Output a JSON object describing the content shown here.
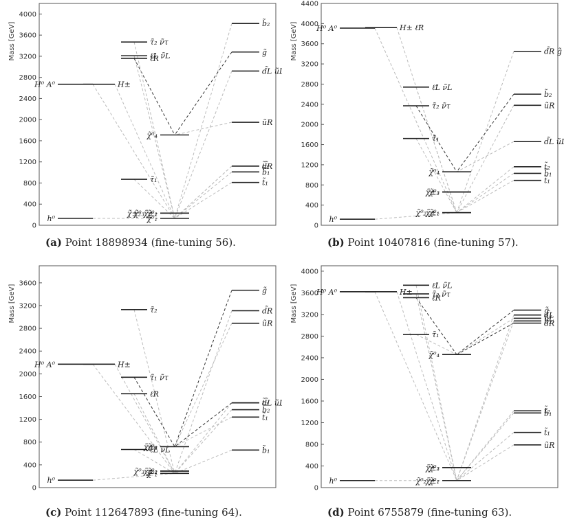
{
  "chart_data": [
    {
      "type": "mass-spectrum",
      "ylabel": "Mass [GeV]",
      "ylim": [
        0,
        4200
      ],
      "yticks": [
        0,
        400,
        800,
        1200,
        1600,
        2000,
        2400,
        2800,
        3200,
        3600,
        4000
      ],
      "caption": {
        "tag": "(a)",
        "text": "Point 18898934 (fine-tuning 56)."
      },
      "levels": [
        {
          "col": 0,
          "mass": 130,
          "label": "h⁰"
        },
        {
          "col": 0,
          "mass": 2670,
          "label": "H⁰ A⁰"
        },
        {
          "col": 1,
          "mass": 2670,
          "label": "H±"
        },
        {
          "col": 2,
          "mass": 3210,
          "label": "ℓ̃L ν̃L"
        },
        {
          "col": 2,
          "mass": 3160,
          "label": "ℓ̃R"
        },
        {
          "col": 2,
          "mass": 3470,
          "label": "τ̃₂ ν̃τ"
        },
        {
          "col": 2,
          "mass": 870,
          "label": "τ̃₁"
        },
        {
          "col": 3,
          "mass": 1710,
          "label": "χ̃⁰₄"
        },
        {
          "col": 3,
          "mass": 230,
          "label": "χ̃⁰₃ χ̃⁰₂"
        },
        {
          "col": 3,
          "mass": 130,
          "label": "χ̃⁰₁"
        },
        {
          "col": 3,
          "mass": 230,
          "label": "χ̃±₂ χ̃±₁"
        },
        {
          "col": 4,
          "mass": 3820,
          "label": "b̃₂"
        },
        {
          "col": 4,
          "mass": 3280,
          "label": "g̃"
        },
        {
          "col": 4,
          "mass": 2920,
          "label": "d̃L ũL"
        },
        {
          "col": 4,
          "mass": 1950,
          "label": "ũR"
        },
        {
          "col": 4,
          "mass": 1120,
          "label": "d̃R"
        },
        {
          "col": 4,
          "mass": 1120,
          "label": "t̃₂"
        },
        {
          "col": 4,
          "mass": 1010,
          "label": "b̃₁"
        },
        {
          "col": 4,
          "mass": 810,
          "label": "t̃₁"
        }
      ]
    },
    {
      "type": "mass-spectrum",
      "ylabel": "Mass [GeV]",
      "ylim": [
        0,
        4400
      ],
      "yticks": [
        0,
        400,
        800,
        1200,
        1600,
        2000,
        2400,
        2800,
        3200,
        3600,
        4000,
        4400
      ],
      "caption": {
        "tag": "(b)",
        "text": "Point 10407816 (fine-tuning 57)."
      },
      "levels": [
        {
          "col": 0,
          "mass": 120,
          "label": "h⁰"
        },
        {
          "col": 0,
          "mass": 3910,
          "label": "H⁰ A⁰"
        },
        {
          "col": 1,
          "mass": 3920,
          "label": "H± ℓ̃R"
        },
        {
          "col": 2,
          "mass": 2740,
          "label": "ℓ̃L ν̃L"
        },
        {
          "col": 2,
          "mass": 2370,
          "label": "τ̃₂ ν̃τ"
        },
        {
          "col": 2,
          "mass": 1720,
          "label": "τ̃₁"
        },
        {
          "col": 3,
          "mass": 1060,
          "label": "χ̃⁰₄"
        },
        {
          "col": 3,
          "mass": 660,
          "label": "χ̃⁰₃"
        },
        {
          "col": 3,
          "mass": 660,
          "label": "χ̃±₂"
        },
        {
          "col": 3,
          "mass": 250,
          "label": "χ̃⁰₂ χ̃⁰₁"
        },
        {
          "col": 3,
          "mass": 250,
          "label": "χ̃±₁"
        },
        {
          "col": 4,
          "mass": 3450,
          "label": "d̃R g̃"
        },
        {
          "col": 4,
          "mass": 2600,
          "label": "b̃₂"
        },
        {
          "col": 4,
          "mass": 2380,
          "label": "ũR"
        },
        {
          "col": 4,
          "mass": 1660,
          "label": "d̃L ũL"
        },
        {
          "col": 4,
          "mass": 1160,
          "label": "t̃₂"
        },
        {
          "col": 4,
          "mass": 1030,
          "label": "b̃₁"
        },
        {
          "col": 4,
          "mass": 890,
          "label": "t̃₁"
        }
      ]
    },
    {
      "type": "mass-spectrum",
      "ylabel": "Mass [GeV]",
      "ylim": [
        0,
        3900
      ],
      "yticks": [
        0,
        400,
        800,
        1200,
        1600,
        2000,
        2400,
        2800,
        3200,
        3600
      ],
      "caption": {
        "tag": "(c)",
        "text": "Point 112647893 (fine-tuning 64)."
      },
      "levels": [
        {
          "col": 0,
          "mass": 130,
          "label": "h⁰"
        },
        {
          "col": 0,
          "mass": 2170,
          "label": "H⁰ A⁰"
        },
        {
          "col": 1,
          "mass": 2170,
          "label": "H±"
        },
        {
          "col": 2,
          "mass": 3130,
          "label": "τ̃₂"
        },
        {
          "col": 2,
          "mass": 1940,
          "label": "τ̃₁ ν̃τ"
        },
        {
          "col": 2,
          "mass": 1650,
          "label": "ℓ̃R"
        },
        {
          "col": 2,
          "mass": 670,
          "label": "ℓ̃L ν̃L"
        },
        {
          "col": 3,
          "mass": 720,
          "label": "χ̃⁰₄"
        },
        {
          "col": 3,
          "mass": 720,
          "label": "χ̃±₂"
        },
        {
          "col": 3,
          "mass": 290,
          "label": "χ̃⁰₃ χ̃⁰₂"
        },
        {
          "col": 3,
          "mass": 250,
          "label": "χ̃⁰₁"
        },
        {
          "col": 3,
          "mass": 290,
          "label": "χ̃±₁"
        },
        {
          "col": 4,
          "mass": 3470,
          "label": "g̃"
        },
        {
          "col": 4,
          "mass": 3110,
          "label": "d̃R"
        },
        {
          "col": 4,
          "mass": 2890,
          "label": "ũR"
        },
        {
          "col": 4,
          "mass": 1490,
          "label": "d̃L ũL"
        },
        {
          "col": 4,
          "mass": 1490,
          "label": "t̃₂"
        },
        {
          "col": 4,
          "mass": 1370,
          "label": "b̃₂"
        },
        {
          "col": 4,
          "mass": 1240,
          "label": "t̃₁"
        },
        {
          "col": 4,
          "mass": 660,
          "label": "b̃₁"
        }
      ]
    },
    {
      "type": "mass-spectrum",
      "ylabel": "Mass [GeV]",
      "ylim": [
        0,
        4100
      ],
      "yticks": [
        0,
        400,
        800,
        1200,
        1600,
        2000,
        2400,
        2800,
        3200,
        3600,
        4000
      ],
      "caption": {
        "tag": "(d)",
        "text": "Point 6755879 (fine-tuning 63)."
      },
      "levels": [
        {
          "col": 0,
          "mass": 130,
          "label": "h⁰"
        },
        {
          "col": 0,
          "mass": 3620,
          "label": "H⁰ A⁰"
        },
        {
          "col": 1,
          "mass": 3620,
          "label": "H±"
        },
        {
          "col": 2,
          "mass": 3740,
          "label": "ℓ̃L ν̃L"
        },
        {
          "col": 2,
          "mass": 3510,
          "label": "ℓ̃R"
        },
        {
          "col": 2,
          "mass": 3580,
          "label": "τ̃₂ ν̃τ"
        },
        {
          "col": 2,
          "mass": 2830,
          "label": "τ̃₁"
        },
        {
          "col": 3,
          "mass": 2460,
          "label": "χ̃⁰₄"
        },
        {
          "col": 3,
          "mass": 370,
          "label": "χ̃⁰₃"
        },
        {
          "col": 3,
          "mass": 370,
          "label": "χ̃±₂"
        },
        {
          "col": 3,
          "mass": 130,
          "label": "χ̃⁰₂ χ̃⁰₁"
        },
        {
          "col": 3,
          "mass": 130,
          "label": "χ̃±₁"
        },
        {
          "col": 4,
          "mass": 3280,
          "label": "g̃"
        },
        {
          "col": 4,
          "mass": 3190,
          "label": "d̃L"
        },
        {
          "col": 4,
          "mass": 3130,
          "label": "ũL"
        },
        {
          "col": 4,
          "mass": 3080,
          "label": "b̃₂"
        },
        {
          "col": 4,
          "mass": 3040,
          "label": "d̃R"
        },
        {
          "col": 4,
          "mass": 1420,
          "label": "t̃₂"
        },
        {
          "col": 4,
          "mass": 1380,
          "label": "b̃₁"
        },
        {
          "col": 4,
          "mass": 1020,
          "label": "t̃₁"
        },
        {
          "col": 4,
          "mass": 790,
          "label": "ũR"
        }
      ]
    }
  ]
}
